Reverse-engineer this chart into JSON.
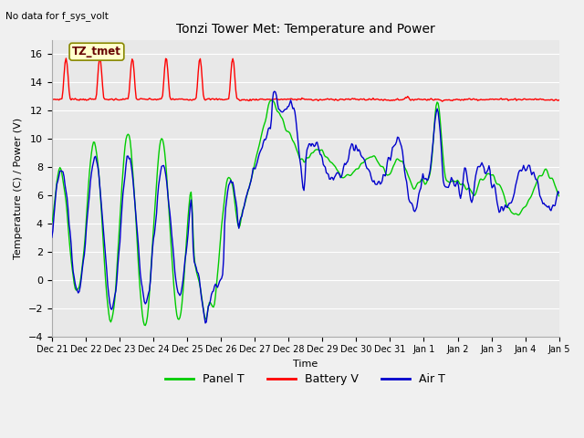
{
  "title": "Tonzi Tower Met: Temperature and Power",
  "subtitle": "No data for f_sys_volt",
  "xlabel": "Time",
  "ylabel": "Temperature (C) / Power (V)",
  "ylim": [
    -4,
    17
  ],
  "yticks": [
    -4,
    -2,
    0,
    2,
    4,
    6,
    8,
    10,
    12,
    14,
    16
  ],
  "annotation": "TZ_tmet",
  "legend_labels": [
    "Panel T",
    "Battery V",
    "Air T"
  ],
  "legend_colors": [
    "#00cc00",
    "#ff0000",
    "#0000cc"
  ],
  "x_tick_labels": [
    "Dec 21",
    "Dec 22",
    "Dec 23",
    "Dec 24",
    "Dec 25",
    "Dec 26",
    "Dec 27",
    "Dec 28",
    "Dec 29",
    "Dec 30",
    "Dec 31",
    "Jan 1",
    "Jan 2",
    "Jan 3",
    "Jan 4",
    "Jan 5"
  ],
  "n_points": 500
}
